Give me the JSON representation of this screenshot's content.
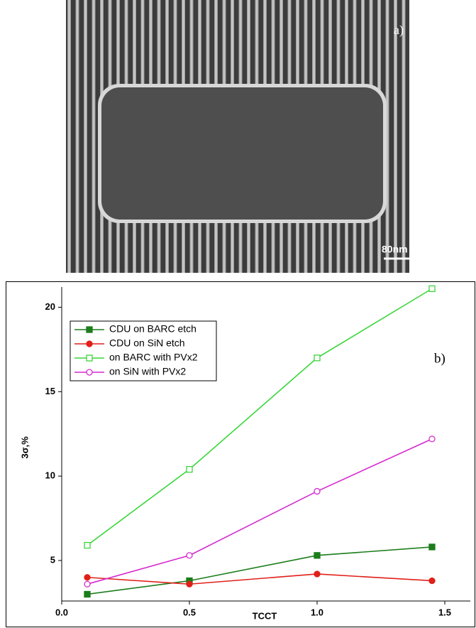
{
  "image_panel": {
    "label": "a)",
    "scale_bar": "80nm"
  },
  "chart_data": {
    "type": "line",
    "panel_label": "b)",
    "x_label": "TCCT",
    "y_label": "3σ,%",
    "xlim": [
      0,
      1.6
    ],
    "ylim": [
      2.6,
      21.2
    ],
    "xticks": [
      {
        "value": 0,
        "label": "0.0"
      },
      0.5,
      {
        "value": 1,
        "label": "1.0"
      },
      1.5
    ],
    "yticks": [
      5,
      10,
      15,
      20
    ],
    "legend": "upper left",
    "x": [
      0.1,
      0.5,
      1.0,
      1.45
    ],
    "series": [
      {
        "name": "CDU on BARC etch",
        "color": "#1b7d1b",
        "marker": "square",
        "filled": true,
        "values": [
          3.0,
          3.8,
          5.3,
          5.8
        ]
      },
      {
        "name": "CDU on SiN etch",
        "color": "#e0201a",
        "marker": "circle",
        "filled": true,
        "values": [
          4.0,
          3.6,
          4.2,
          3.8
        ]
      },
      {
        "name": "on BARC with PVx2",
        "color": "#3ad63a",
        "marker": "square",
        "filled": false,
        "values": [
          5.9,
          10.4,
          17.0,
          21.1
        ]
      },
      {
        "name": "on SiN with PVx2",
        "color": "#d62ad0",
        "marker": "circle",
        "filled": false,
        "values": [
          3.6,
          5.3,
          9.1,
          12.2
        ]
      }
    ]
  }
}
